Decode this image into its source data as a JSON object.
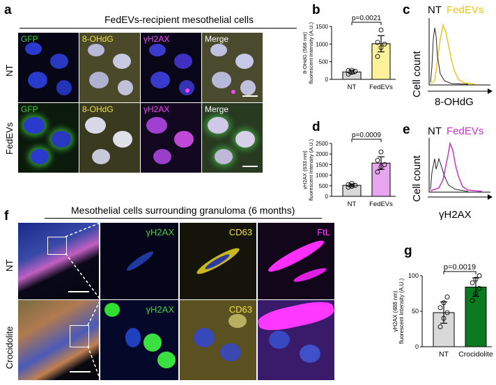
{
  "panels": {
    "a": {
      "letter": "a",
      "title": "FedEVs-recipient mesothelial cells",
      "rows": [
        "NT",
        "FedEVs"
      ],
      "columns": [
        "GFP",
        "8-OHdG",
        "γH2AX",
        "Merge"
      ],
      "colors": {
        "GFP": "#3fd43f",
        "8-OHdG": "#f2e23a",
        "γH2AX": "#ff40ff",
        "Merge": "#ffffff"
      }
    },
    "b": {
      "letter": "b"
    },
    "c": {
      "letter": "c",
      "legend": [
        "NT",
        "FedEVs"
      ],
      "ylabel": "Cell count",
      "xlabel": "8-OHdG",
      "colors": [
        "#222222",
        "#f0c419"
      ]
    },
    "d": {
      "letter": "d"
    },
    "e": {
      "letter": "e",
      "legend": [
        "NT",
        "FedEVs"
      ],
      "ylabel": "Cell count",
      "xlabel": "γH2AX",
      "colors": [
        "#222222",
        "#c832c8"
      ]
    },
    "f": {
      "letter": "f",
      "title": "Mesothelial cells surrounding granuloma (6 months)",
      "rows": [
        "NT",
        "Crocidolite"
      ],
      "columns": [
        "γH2AX",
        "CD63",
        "FtL"
      ],
      "colors": {
        "γH2AX": "#3fd43f",
        "CD63": "#f2e23a",
        "FtL": "#ff40ff"
      }
    },
    "g": {
      "letter": "g"
    }
  },
  "chart_data": [
    {
      "id": "b",
      "type": "bar",
      "categories": [
        "NT",
        "FedEVs"
      ],
      "values": [
        210,
        1010
      ],
      "errors": [
        50,
        230
      ],
      "points": [
        [
          150,
          200,
          230,
          250,
          260
        ],
        [
          650,
          900,
          1000,
          1050,
          1400
        ]
      ],
      "colors": [
        "#d9d9d9",
        "#fdf29a"
      ],
      "ylabel": "8-OHdG (568 nm) fluorescent Intensity (A.U.)",
      "ylim": [
        0,
        1500
      ],
      "yticks": [
        0,
        500,
        1000,
        1500
      ],
      "annotation": "p=0.0021"
    },
    {
      "id": "d",
      "type": "bar",
      "categories": [
        "NT",
        "FedEVs"
      ],
      "values": [
        520,
        1570
      ],
      "errors": [
        70,
        300
      ],
      "points": [
        [
          430,
          470,
          520,
          560,
          610
        ],
        [
          1150,
          1400,
          1500,
          1700,
          2100
        ]
      ],
      "colors": [
        "#d9d9d9",
        "#e9a6f0"
      ],
      "ylabel": "γH2AX (633 nm) fluorescent Intensity (A.U.)",
      "ylim": [
        0,
        2500
      ],
      "yticks": [
        0,
        500,
        1000,
        1500,
        2000,
        2500
      ],
      "annotation": "p=0.0009"
    },
    {
      "id": "g",
      "type": "bar",
      "categories": [
        "NT",
        "Crocidolite"
      ],
      "values": [
        48,
        84
      ],
      "errors": [
        15,
        13
      ],
      "points": [
        [
          28,
          40,
          48,
          55,
          62,
          70
        ],
        [
          65,
          75,
          82,
          90,
          95,
          100
        ]
      ],
      "colors": [
        "#d9d9d9",
        "#0a7a1e"
      ],
      "ylabel": "γH2AX (488 nm) fluorescent Intensity (A.U.)",
      "ylim": [
        0,
        100
      ],
      "yticks": [
        0,
        50,
        100
      ],
      "annotation": "p=0.0019"
    }
  ]
}
